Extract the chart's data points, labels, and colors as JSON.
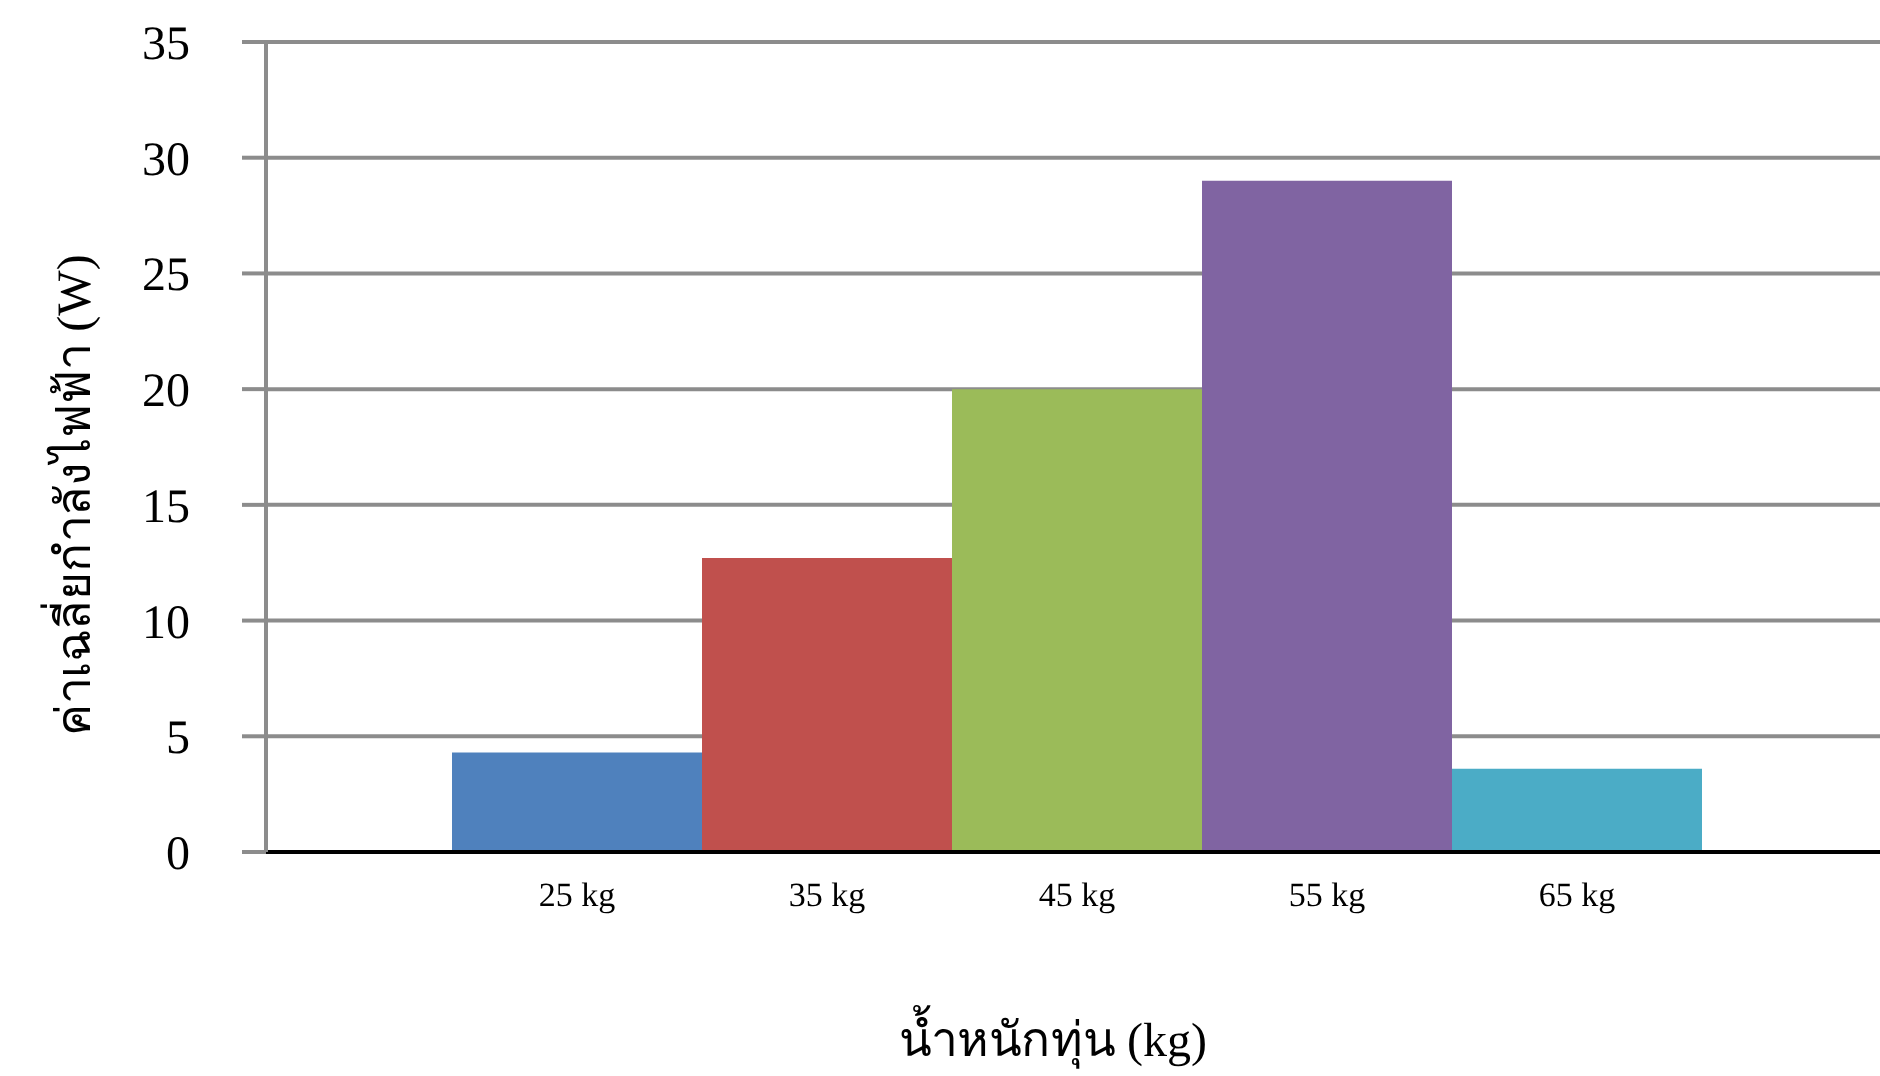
{
  "chart_data": {
    "type": "bar",
    "xlabel": "น้ำหนักทุ่น (kg)",
    "ylabel": "ค่าเฉลี่ยกำลังไฟฟ้า (W)",
    "categories": [
      "25 kg",
      "35 kg",
      "45 kg",
      "55 kg",
      "65 kg"
    ],
    "values": [
      4.3,
      12.7,
      20.0,
      29.0,
      3.6
    ],
    "colors": [
      "#4f81bd",
      "#c0504d",
      "#9bbb59",
      "#8064a2",
      "#4bacc6"
    ],
    "ylim": [
      0,
      35
    ],
    "yticks": [
      0,
      5,
      10,
      15,
      20,
      25,
      30,
      35
    ],
    "grid": "y"
  }
}
